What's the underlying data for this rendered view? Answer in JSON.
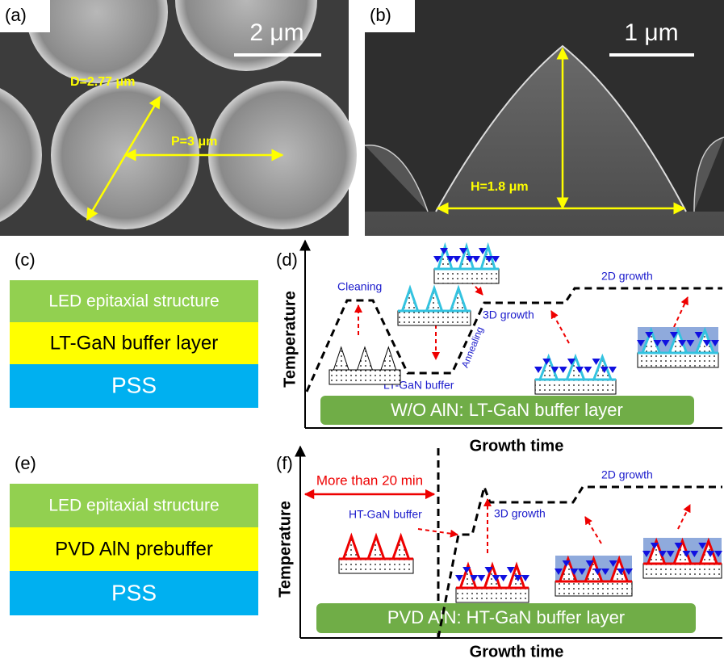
{
  "panels": {
    "a": {
      "label": "(a)",
      "scale_bar": "2 μm",
      "diameter": "D=2.77 μm",
      "pitch": "P=3 μm"
    },
    "b": {
      "label": "(b)",
      "scale_bar": "1 μm",
      "height": "H=1.8 μm"
    },
    "c": {
      "label": "(c)",
      "layers": [
        "LED epitaxial structure",
        "LT-GaN buffer layer",
        "PSS"
      ]
    },
    "d": {
      "label": "(d)",
      "y_axis": "Temperature",
      "x_axis": "Growth time",
      "banner": "W/O AlN: LT-GaN buffer layer",
      "annotations": {
        "cleaning": "Cleaning",
        "buffer": "LT-GaN buffer",
        "annealing": "Annealing",
        "growth_3d": "3D growth",
        "growth_2d": "2D growth"
      }
    },
    "e": {
      "label": "(e)",
      "layers": [
        "LED epitaxial structure",
        "PVD AlN prebuffer",
        "PSS"
      ]
    },
    "f": {
      "label": "(f)",
      "y_axis": "Temperature",
      "x_axis": "Growth time",
      "banner": "PVD AlN: HT-GaN buffer layer",
      "annotations": {
        "duration": "More than 20 min",
        "buffer": "HT-GaN buffer",
        "growth_3d": "3D growth",
        "growth_2d": "2D growth"
      }
    }
  }
}
